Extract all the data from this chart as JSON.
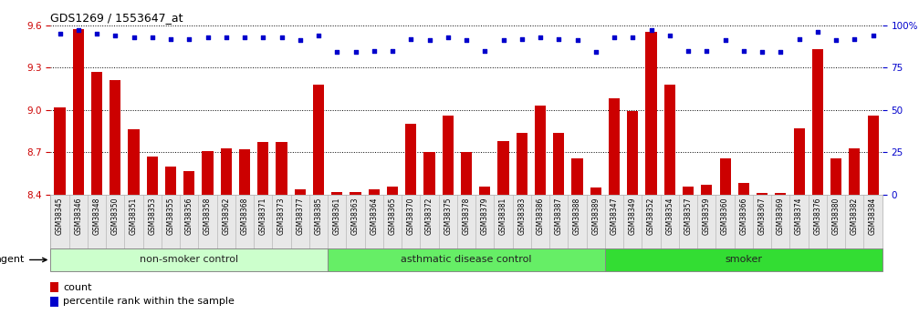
{
  "title": "GDS1269 / 1553647_at",
  "samples": [
    "GSM38345",
    "GSM38346",
    "GSM38348",
    "GSM38350",
    "GSM38351",
    "GSM38353",
    "GSM38355",
    "GSM38356",
    "GSM38358",
    "GSM38362",
    "GSM38368",
    "GSM38371",
    "GSM38373",
    "GSM38377",
    "GSM38385",
    "GSM38361",
    "GSM38363",
    "GSM38364",
    "GSM38365",
    "GSM38370",
    "GSM38372",
    "GSM38375",
    "GSM38378",
    "GSM38379",
    "GSM38381",
    "GSM38383",
    "GSM38386",
    "GSM38387",
    "GSM38388",
    "GSM38389",
    "GSM38347",
    "GSM38349",
    "GSM38352",
    "GSM38354",
    "GSM38357",
    "GSM38359",
    "GSM38360",
    "GSM38366",
    "GSM38367",
    "GSM38369",
    "GSM38374",
    "GSM38376",
    "GSM38380",
    "GSM38382",
    "GSM38384"
  ],
  "counts": [
    9.02,
    9.57,
    9.27,
    9.21,
    8.86,
    8.67,
    8.6,
    8.57,
    8.71,
    8.73,
    8.72,
    8.77,
    8.77,
    8.44,
    9.18,
    8.42,
    8.42,
    8.44,
    8.46,
    8.9,
    8.7,
    8.96,
    8.7,
    8.46,
    8.78,
    8.84,
    9.03,
    8.84,
    8.66,
    8.45,
    9.08,
    8.99,
    9.55,
    9.18,
    8.46,
    8.47,
    8.66,
    8.48,
    8.41,
    8.41,
    8.87,
    9.43,
    8.66,
    8.73,
    8.96
  ],
  "percentiles": [
    95,
    97,
    95,
    94,
    93,
    93,
    92,
    92,
    93,
    93,
    93,
    93,
    93,
    91,
    94,
    84,
    84,
    85,
    85,
    92,
    91,
    93,
    91,
    85,
    91,
    92,
    93,
    92,
    91,
    84,
    93,
    93,
    97,
    94,
    85,
    85,
    91,
    85,
    84,
    84,
    92,
    96,
    91,
    92,
    94
  ],
  "groups": [
    {
      "label": "non-smoker control",
      "start": 0,
      "end": 14,
      "color": "#ccffcc"
    },
    {
      "label": "asthmatic disease control",
      "start": 15,
      "end": 29,
      "color": "#66ee66"
    },
    {
      "label": "smoker",
      "start": 30,
      "end": 44,
      "color": "#33dd33"
    }
  ],
  "ylim_left": [
    8.4,
    9.6
  ],
  "ylim_right": [
    0,
    100
  ],
  "yticks_left": [
    8.4,
    8.7,
    9.0,
    9.3,
    9.6
  ],
  "yticks_right": [
    0,
    25,
    50,
    75,
    100
  ],
  "bar_color": "#cc0000",
  "dot_color": "#0000cc",
  "bar_bottom": 8.4,
  "background_color": "#ffffff",
  "grid_color": "#000000"
}
